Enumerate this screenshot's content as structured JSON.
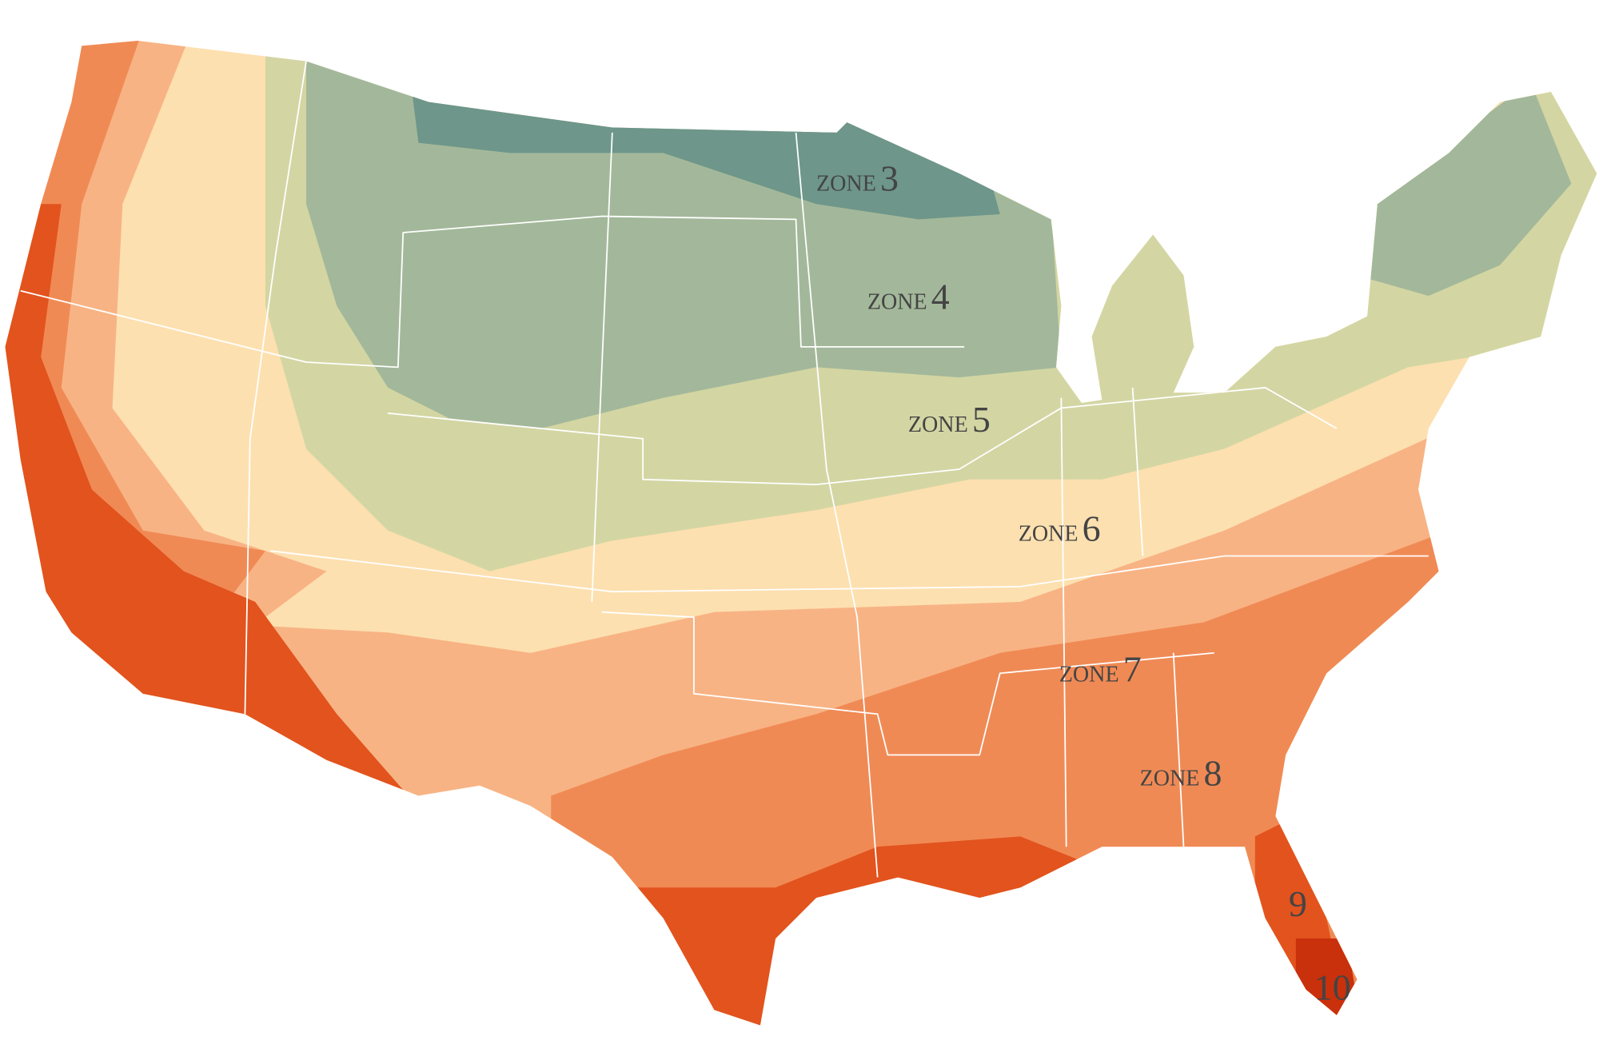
{
  "labels": [
    {
      "prefix": "ZONE",
      "zone": "3"
    },
    {
      "prefix": "ZONE",
      "zone": "4"
    },
    {
      "prefix": "ZONE",
      "zone": "5"
    },
    {
      "prefix": "ZONE",
      "zone": "6"
    },
    {
      "prefix": "ZONE",
      "zone": "7"
    },
    {
      "prefix": "ZONE",
      "zone": "8"
    },
    {
      "zone": "9"
    },
    {
      "zone": "10"
    }
  ]
}
